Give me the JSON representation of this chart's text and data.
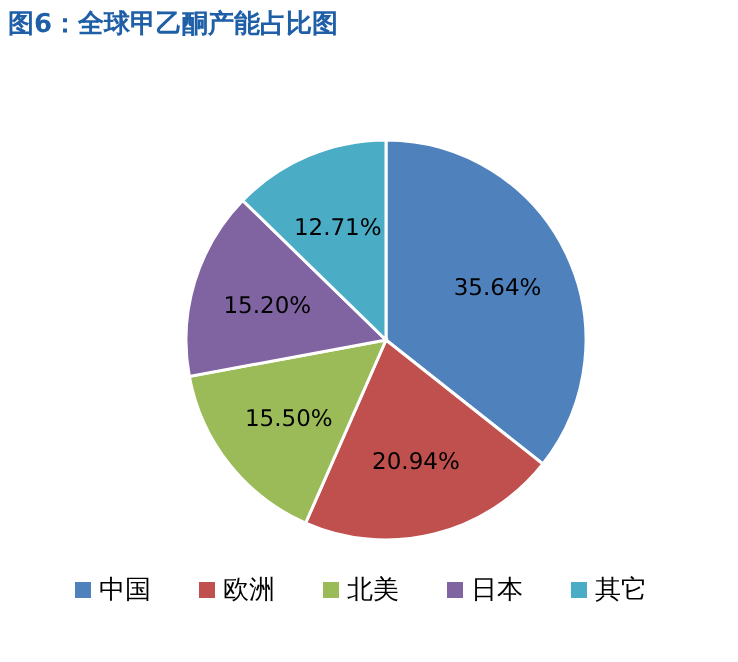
{
  "chart_data": {
    "type": "pie",
    "title": "图6：全球甲乙酮产能占比图",
    "categories": [
      "中国",
      "欧洲",
      "北美",
      "日本",
      "其它"
    ],
    "values": [
      35.64,
      20.94,
      15.5,
      15.2,
      12.71
    ],
    "value_labels": [
      "35.64%",
      "20.94%",
      "15.50%",
      "15.20%",
      "12.71%"
    ],
    "colors": [
      "#4f81bd",
      "#c0504d",
      "#9bbb59",
      "#8064a2",
      "#4bacc6"
    ],
    "legend": "bottom"
  }
}
